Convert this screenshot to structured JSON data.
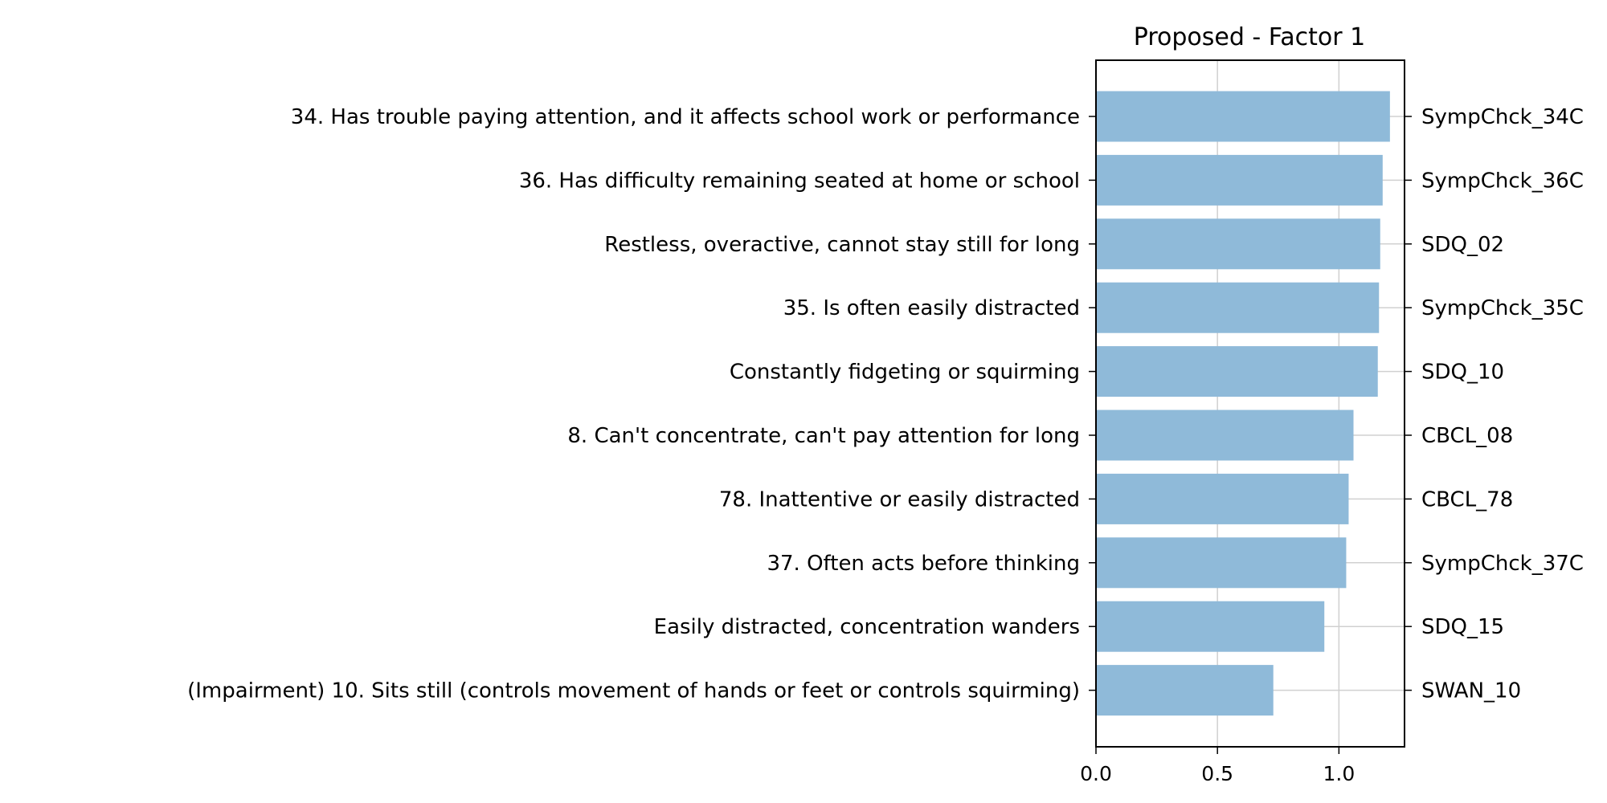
{
  "chart_data": {
    "type": "bar",
    "orientation": "horizontal",
    "title": "Proposed - Factor 1",
    "xlabel": "",
    "ylabel": "",
    "xlim": [
      0,
      1.27
    ],
    "xticks": [
      0.0,
      0.5,
      1.0
    ],
    "xtick_labels": [
      "0.0",
      "0.5",
      "1.0"
    ],
    "grid": true,
    "bar_color": "#8fbad9",
    "grid_color": "#d0d0d0",
    "items": [
      {
        "left_label": "34. Has trouble paying attention, and it affects school work or performance",
        "right_label": "SympChck_34C",
        "value": 1.21
      },
      {
        "left_label": "36. Has difficulty remaining seated at home or school",
        "right_label": "SympChck_36C",
        "value": 1.18
      },
      {
        "left_label": "Restless, overactive, cannot stay still for long",
        "right_label": "SDQ_02",
        "value": 1.17
      },
      {
        "left_label": "35. Is often easily distracted",
        "right_label": "SympChck_35C",
        "value": 1.165
      },
      {
        "left_label": "Constantly fidgeting or squirming",
        "right_label": "SDQ_10",
        "value": 1.16
      },
      {
        "left_label": "8. Can't concentrate, can't pay attention for long",
        "right_label": "CBCL_08",
        "value": 1.06
      },
      {
        "left_label": "78. Inattentive or easily distracted",
        "right_label": "CBCL_78",
        "value": 1.04
      },
      {
        "left_label": "37. Often acts before thinking",
        "right_label": "SympChck_37C",
        "value": 1.03
      },
      {
        "left_label": "Easily distracted, concentration wanders",
        "right_label": "SDQ_15",
        "value": 0.94
      },
      {
        "left_label": "(Impairment) 10. Sits still (controls movement of hands or feet or controls squirming)",
        "right_label": "SWAN_10",
        "value": 0.73
      }
    ]
  }
}
